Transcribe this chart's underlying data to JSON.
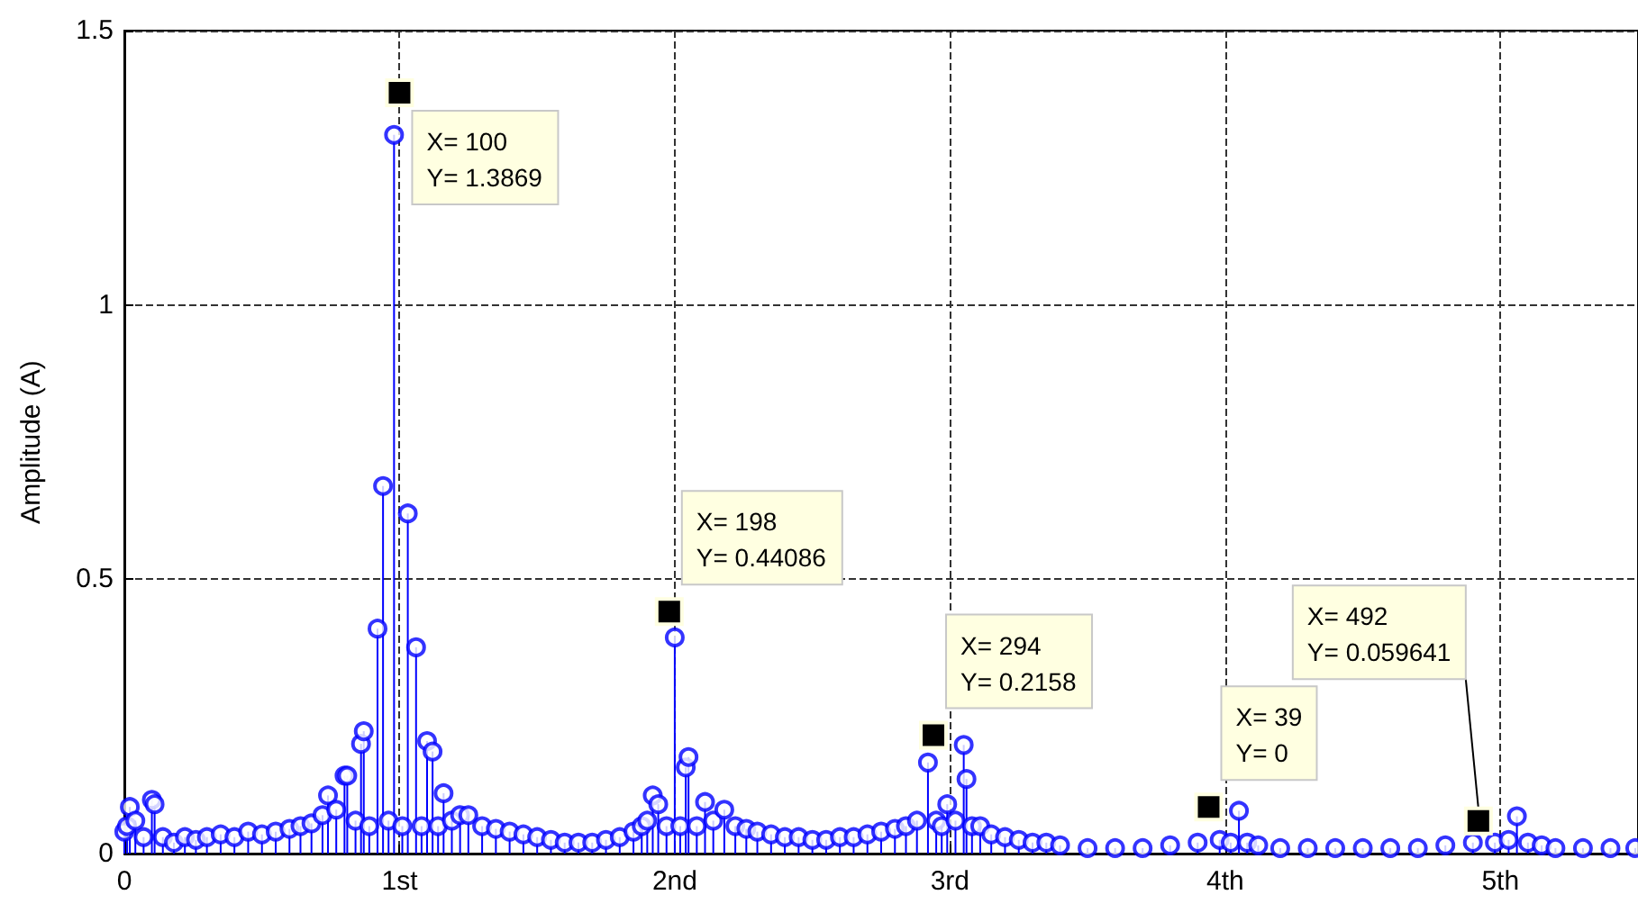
{
  "chart_data": {
    "type": "lollipop",
    "ylabel": "Amplitude (A)",
    "color": "#0000ff",
    "marker": "circle",
    "grid": true,
    "line_style": "dashed",
    "xlim": [
      0,
      5.5
    ],
    "ylim": [
      0,
      1.5
    ],
    "xticks": [
      0,
      {
        "value": 1,
        "label": "1st"
      },
      {
        "value": 2,
        "label": "2nd"
      },
      {
        "value": 3,
        "label": "3rd"
      },
      {
        "value": 4,
        "label": "4th"
      },
      {
        "value": 5,
        "label": "5th"
      }
    ],
    "yticks": [
      0,
      0.5,
      1,
      1.5
    ],
    "x": [
      0,
      0.01,
      0.02,
      0.04,
      0.07,
      0.1,
      0.11,
      0.14,
      0.18,
      0.22,
      0.26,
      0.3,
      0.35,
      0.4,
      0.45,
      0.5,
      0.55,
      0.6,
      0.64,
      0.68,
      0.72,
      0.74,
      0.77,
      0.8,
      0.81,
      0.84,
      0.86,
      0.87,
      0.89,
      0.92,
      0.94,
      0.96,
      0.98,
      1.01,
      1.03,
      1.06,
      1.08,
      1.1,
      1.12,
      1.14,
      1.16,
      1.19,
      1.22,
      1.25,
      1.3,
      1.35,
      1.4,
      1.45,
      1.5,
      1.55,
      1.6,
      1.65,
      1.7,
      1.75,
      1.8,
      1.85,
      1.88,
      1.9,
      1.92,
      1.94,
      1.97,
      2,
      2.02,
      2.04,
      2.05,
      2.08,
      2.11,
      2.14,
      2.18,
      2.22,
      2.26,
      2.3,
      2.35,
      2.4,
      2.45,
      2.5,
      2.55,
      2.6,
      2.65,
      2.7,
      2.75,
      2.8,
      2.84,
      2.88,
      2.92,
      2.95,
      2.97,
      2.99,
      3.02,
      3.05,
      3.06,
      3.08,
      3.11,
      3.15,
      3.2,
      3.25,
      3.3,
      3.35,
      3.4,
      3.5,
      3.6,
      3.7,
      3.8,
      3.9,
      3.98,
      4.02,
      4.05,
      4.08,
      4.12,
      4.2,
      4.3,
      4.4,
      4.5,
      4.6,
      4.7,
      4.8,
      4.9,
      4.98,
      5.03,
      5.06,
      5.1,
      5.15,
      5.2,
      5.3,
      5.4,
      5.49
    ],
    "values": [
      0.04,
      0.05,
      0.085,
      0.06,
      0.03,
      0.098,
      0.09,
      0.03,
      0.02,
      0.03,
      0.025,
      0.03,
      0.035,
      0.03,
      0.04,
      0.035,
      0.04,
      0.045,
      0.05,
      0.055,
      0.07,
      0.106,
      0.08,
      0.142,
      0.142,
      0.06,
      0.2,
      0.223,
      0.05,
      0.41,
      0.67,
      0.06,
      1.31,
      0.05,
      0.62,
      0.376,
      0.05,
      0.205,
      0.186,
      0.05,
      0.11,
      0.06,
      0.07,
      0.07,
      0.05,
      0.045,
      0.04,
      0.035,
      0.03,
      0.025,
      0.02,
      0.02,
      0.02,
      0.025,
      0.03,
      0.04,
      0.05,
      0.06,
      0.106,
      0.09,
      0.05,
      0.394,
      0.05,
      0.157,
      0.176,
      0.05,
      0.094,
      0.06,
      0.08,
      0.05,
      0.045,
      0.04,
      0.035,
      0.03,
      0.03,
      0.025,
      0.025,
      0.03,
      0.03,
      0.035,
      0.04,
      0.045,
      0.05,
      0.06,
      0.166,
      0.06,
      0.05,
      0.09,
      0.06,
      0.198,
      0.136,
      0.05,
      0.05,
      0.035,
      0.03,
      0.025,
      0.02,
      0.02,
      0.015,
      0.01,
      0.01,
      0.01,
      0.015,
      0.02,
      0.025,
      0.02,
      0.078,
      0.02,
      0.015,
      0.01,
      0.01,
      0.01,
      0.01,
      0.01,
      0.01,
      0.015,
      0.02,
      0.02,
      0.025,
      0.068,
      0.02,
      0.015,
      0.01,
      0.01,
      0.01,
      0.01
    ],
    "annotations": [
      {
        "text": "X= 100\nY= 1.3869",
        "x": 1,
        "y": 1.3869
      },
      {
        "text": "X= 198\nY= 0.44086",
        "x": 1.98,
        "y": 0.44086
      },
      {
        "text": "X= 294\nY= 0.2158",
        "x": 2.94,
        "y": 0.2158
      },
      {
        "text": "X= 39\nY= 0",
        "x": 3.94,
        "y": 0.085
      },
      {
        "text": "X= 492\nY= 0.059641",
        "x": 4.92,
        "y": 0.059641
      }
    ]
  }
}
